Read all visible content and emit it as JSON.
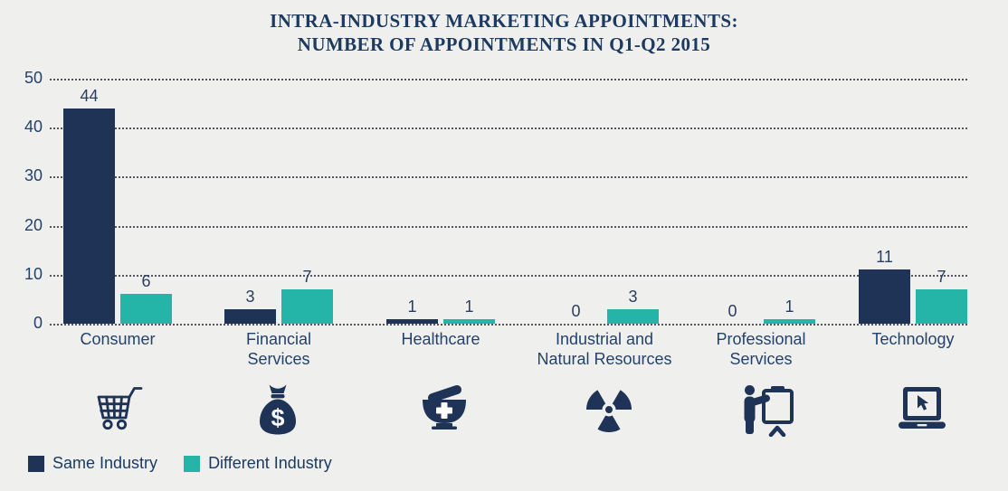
{
  "title": {
    "line1": "INTRA-INDUSTRY MARKETING APPOINTMENTS:",
    "line2": "NUMBER OF APPOINTMENTS IN Q1-Q2 2015"
  },
  "chart_data": {
    "type": "bar",
    "title": "INTRA-INDUSTRY MARKETING APPOINTMENTS: NUMBER OF APPOINTMENTS IN Q1-Q2 2015",
    "categories": [
      "Consumer",
      "Financial Services",
      "Healthcare",
      "Industrial and Natural Resources",
      "Professional Services",
      "Technology"
    ],
    "category_lines": [
      [
        "Consumer"
      ],
      [
        "Financial",
        "Services"
      ],
      [
        "Healthcare"
      ],
      [
        "Industrial and",
        "Natural Resources"
      ],
      [
        "Professional",
        "Services"
      ],
      [
        "Technology"
      ]
    ],
    "series": [
      {
        "name": "Same Industry",
        "color": "#1f3356",
        "values": [
          44,
          3,
          1,
          0,
          0,
          11
        ]
      },
      {
        "name": "Different Industry",
        "color": "#24b4a8",
        "values": [
          6,
          7,
          1,
          3,
          1,
          7
        ]
      }
    ],
    "y_ticks": [
      0,
      10,
      20,
      30,
      40,
      50
    ],
    "ylim": [
      0,
      50
    ],
    "grid": "horizontal-dotted",
    "legend_position": "bottom-left",
    "value_labels": "above-bars",
    "icons": [
      "shopping-cart",
      "money-bag",
      "mortar-pestle",
      "radiation",
      "presenter",
      "laptop-cursor"
    ]
  },
  "legend": {
    "items": [
      {
        "label": "Same Industry",
        "color": "#1f3356"
      },
      {
        "label": "Different Industry",
        "color": "#24b4a8"
      }
    ]
  },
  "colors": {
    "background": "#efefed",
    "navy": "#1f3356",
    "teal": "#24b4a8",
    "title_text": "#1d3a60",
    "axis_text": "#24426b",
    "gridline": "#55555e"
  }
}
